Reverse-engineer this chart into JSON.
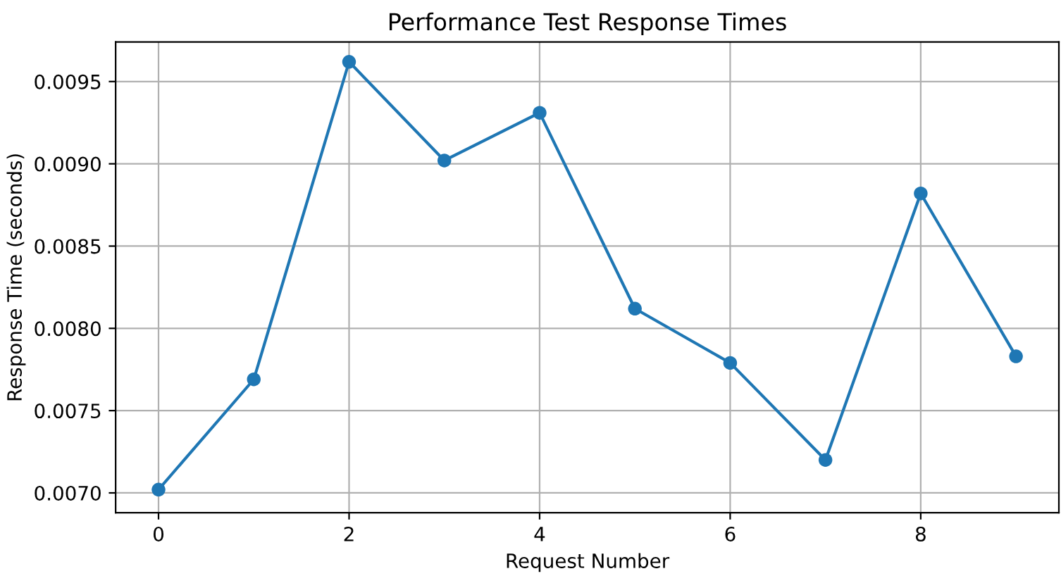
{
  "chart_data": {
    "type": "line",
    "title": "Performance Test Response Times",
    "xlabel": "Request Number",
    "ylabel": "Response Time (seconds)",
    "x": [
      0,
      1,
      2,
      3,
      4,
      5,
      6,
      7,
      8,
      9
    ],
    "series": [
      {
        "color": "#1f77b4",
        "values": [
          0.00702,
          0.00769,
          0.00962,
          0.00902,
          0.00931,
          0.00812,
          0.00779,
          0.0072,
          0.00882,
          0.00783
        ]
      }
    ],
    "xlim": [
      -0.45,
      9.45
    ],
    "xticks": [
      0,
      2,
      4,
      6,
      8
    ],
    "ylim": [
      0.00688,
      0.00974
    ],
    "yticks": [
      {
        "value": 0.007,
        "label": "0.0070"
      },
      {
        "value": 0.0075,
        "label": "0.0075"
      },
      {
        "value": 0.008,
        "label": "0.0080"
      },
      {
        "value": 0.0085,
        "label": "0.0085"
      },
      {
        "value": 0.009,
        "label": "0.0090"
      },
      {
        "value": 0.0095,
        "label": "0.0095"
      }
    ],
    "grid": true,
    "marker": "circle",
    "line_style": "solid"
  }
}
